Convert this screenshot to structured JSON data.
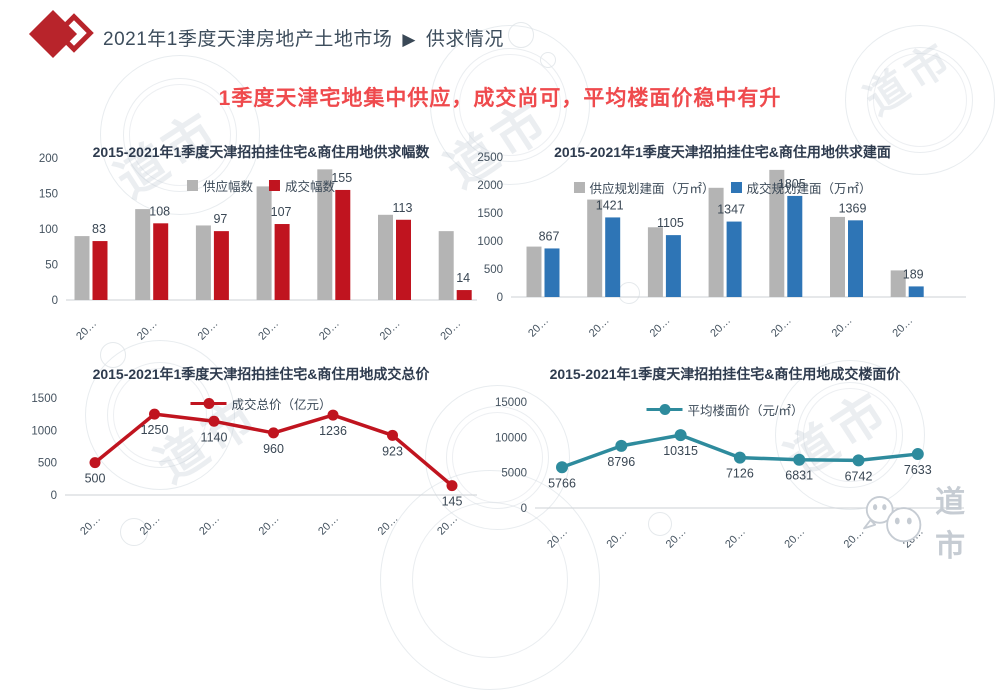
{
  "header": {
    "title": "2021年1季度天津房地产土地市场",
    "arrow": "▶",
    "section": "供求情况"
  },
  "headline": {
    "text": "1季度天津宅地集中供应，成交尚可，平均楼面价稳中有升"
  },
  "brand": {
    "watermark_text": "道市",
    "footer_text": "道市"
  },
  "colors": {
    "supply_gray": "#b4b4b4",
    "deal_red": "#c0141f",
    "deal_blue": "#2e75b6",
    "avg_teal": "#2e8b9d",
    "headline_red": "#ef4a4d",
    "text_dark": "#3d4c5b"
  },
  "chart_data": [
    {
      "type": "bar",
      "title": "2015-2021年1季度天津招拍挂住宅&商住用地供求幅数",
      "categories": [
        "20…",
        "20…",
        "20…",
        "20…",
        "20…",
        "20…",
        "20…"
      ],
      "yticks": [
        0,
        50,
        100,
        150,
        200
      ],
      "ylim": [
        0,
        200
      ],
      "grid": false,
      "legend_position": "top-center",
      "series": [
        {
          "name": "供应幅数",
          "color": "#b4b4b4",
          "data_labels": false,
          "values": [
            90,
            128,
            105,
            160,
            184,
            120,
            97
          ]
        },
        {
          "name": "成交幅数",
          "color": "#c0141f",
          "data_labels": true,
          "values": [
            83,
            108,
            97,
            107,
            155,
            113,
            14
          ]
        }
      ]
    },
    {
      "type": "bar",
      "title": "2015-2021年1季度天津招拍挂住宅&商住用地供求建面",
      "categories": [
        "20…",
        "20…",
        "20…",
        "20…",
        "20…",
        "20…",
        "20…"
      ],
      "yticks": [
        0,
        500,
        1000,
        1500,
        2000,
        2500
      ],
      "ylim": [
        0,
        2500
      ],
      "grid": false,
      "legend_position": "top-center",
      "series": [
        {
          "name": "供应规划建面（万㎡）",
          "color": "#b4b4b4",
          "data_labels": false,
          "values": [
            900,
            1740,
            1245,
            1950,
            2270,
            1430,
            475
          ]
        },
        {
          "name": "成交规划建面（万㎡）",
          "color": "#2e75b6",
          "data_labels": true,
          "values": [
            867,
            1421,
            1105,
            1347,
            1805,
            1369,
            189
          ]
        }
      ]
    },
    {
      "type": "line",
      "title": "2015-2021年1季度天津招拍挂住宅&商住用地成交总价",
      "categories": [
        "20…",
        "20…",
        "20…",
        "20…",
        "20…",
        "20…",
        "20…"
      ],
      "yticks": [
        0,
        500,
        1000,
        1500
      ],
      "ylim": [
        0,
        1500
      ],
      "grid": false,
      "legend_position": "top-center",
      "series": [
        {
          "name": "成交总价（亿元）",
          "color": "#c0141f",
          "data_labels": true,
          "marker": "circle",
          "values": [
            500,
            1250,
            1140,
            960,
            1236,
            923,
            145
          ]
        }
      ]
    },
    {
      "type": "line",
      "title": "2015-2021年1季度天津招拍挂住宅&商住用地成交楼面价",
      "categories": [
        "20…",
        "20…",
        "20…",
        "20…",
        "20…",
        "20…",
        "20…"
      ],
      "yticks": [
        0,
        5000,
        10000,
        15000
      ],
      "ylim": [
        0,
        15000
      ],
      "grid": false,
      "legend_position": "top-center",
      "series": [
        {
          "name": "平均楼面价（元/㎡）",
          "color": "#2e8b9d",
          "data_labels": true,
          "marker": "circle",
          "values": [
            5766,
            8796,
            10315,
            7126,
            6831,
            6742,
            7633
          ]
        }
      ]
    }
  ]
}
